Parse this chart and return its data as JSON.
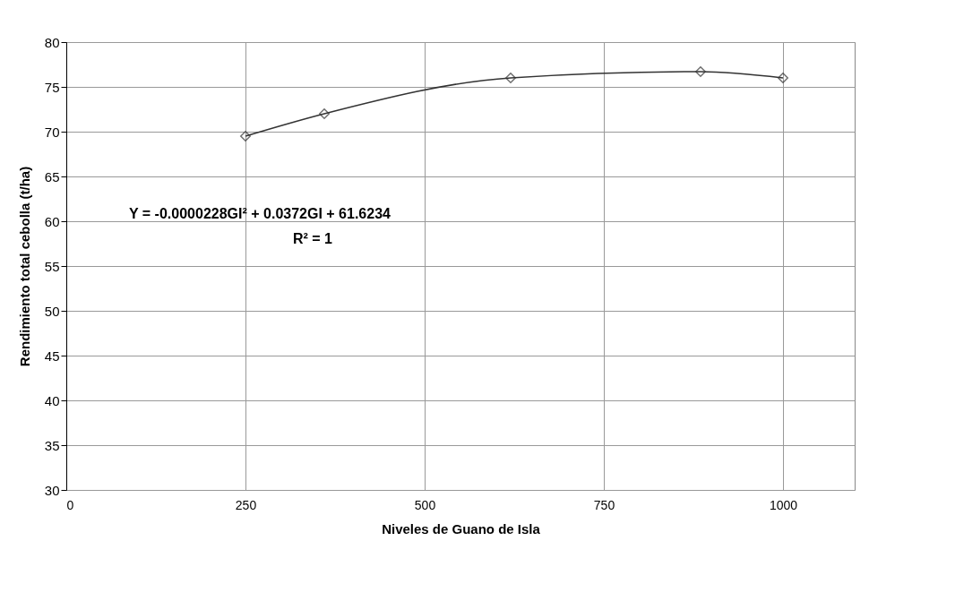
{
  "chart_data": {
    "type": "line",
    "xlabel": "Niveles de Guano de Isla",
    "ylabel": "Rendimiento total cebolla (t/ha)",
    "x": [
      250,
      360,
      620,
      885,
      1000
    ],
    "series": [
      {
        "color": "#333333",
        "values": [
          69.5,
          72,
          76,
          76.7,
          76
        ]
      }
    ],
    "marker": "diamond",
    "line_style": "solid",
    "xlim": [
      0,
      1100
    ],
    "xticks": [
      0,
      250,
      500,
      750,
      1000
    ],
    "ylim": [
      30,
      80
    ],
    "yticks": [
      30,
      35,
      40,
      45,
      50,
      55,
      60,
      65,
      70,
      75,
      80
    ],
    "grid": true,
    "annotations": [
      "Y = -0.0000228GI² + 0.0372GI + 61.6234",
      "R² = 1"
    ]
  }
}
